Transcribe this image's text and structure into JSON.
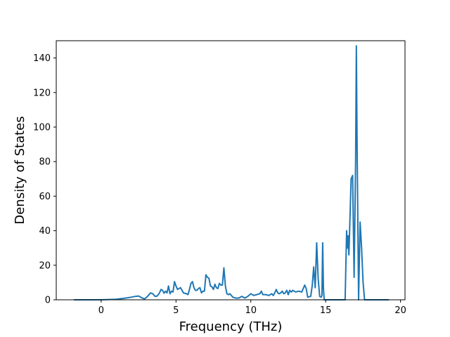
{
  "chart_data": {
    "type": "line",
    "title": "",
    "xlabel": "Frequency (THz)",
    "ylabel": "Density of States",
    "xlim": [
      -3,
      20.3
    ],
    "ylim": [
      0,
      150
    ],
    "xticks": [
      0,
      5,
      10,
      15,
      20
    ],
    "yticks": [
      0,
      20,
      40,
      60,
      80,
      100,
      120,
      140
    ],
    "grid": false,
    "legend": "none",
    "series": [
      {
        "color": "#1f77b4",
        "x": [
          -1.8,
          -1.0,
          0.0,
          1.0,
          1.5,
          2.0,
          2.3,
          2.5,
          2.7,
          2.9,
          3.1,
          3.3,
          3.45,
          3.6,
          3.75,
          3.9,
          4.0,
          4.1,
          4.2,
          4.3,
          4.4,
          4.5,
          4.6,
          4.7,
          4.8,
          4.9,
          5.0,
          5.1,
          5.3,
          5.5,
          5.7,
          5.8,
          5.9,
          6.0,
          6.1,
          6.2,
          6.3,
          6.4,
          6.5,
          6.6,
          6.7,
          6.8,
          6.9,
          7.0,
          7.1,
          7.2,
          7.3,
          7.4,
          7.5,
          7.6,
          7.7,
          7.8,
          7.9,
          8.0,
          8.1,
          8.2,
          8.3,
          8.4,
          8.5,
          8.6,
          8.8,
          9.0,
          9.2,
          9.4,
          9.6,
          9.8,
          10.0,
          10.2,
          10.4,
          10.6,
          10.7,
          10.8,
          11.0,
          11.2,
          11.4,
          11.5,
          11.6,
          11.7,
          11.8,
          11.9,
          12.0,
          12.1,
          12.2,
          12.3,
          12.4,
          12.5,
          12.6,
          12.7,
          12.8,
          12.9,
          13.0,
          13.2,
          13.4,
          13.6,
          13.7,
          13.8,
          14.0,
          14.1,
          14.2,
          14.3,
          14.4,
          14.5,
          14.6,
          14.7,
          14.75,
          14.8,
          14.85,
          14.9,
          15.0,
          15.5,
          16.0,
          16.3,
          16.4,
          16.45,
          16.5,
          16.55,
          16.6,
          16.7,
          16.8,
          16.9,
          17.0,
          17.05,
          17.1,
          17.2,
          17.3,
          17.4,
          17.5,
          17.6,
          17.7,
          18.0,
          18.5,
          19.2
        ],
        "y": [
          0,
          0,
          0,
          0.3,
          0.8,
          1.5,
          2.0,
          2.2,
          1.2,
          0.5,
          2.0,
          4.0,
          3.5,
          2.0,
          2.2,
          4.0,
          6.0,
          5.5,
          3.8,
          5.0,
          4.0,
          8.0,
          3.5,
          5.0,
          4.5,
          10.5,
          8.0,
          6.0,
          7.0,
          4.0,
          3.5,
          3.0,
          6.0,
          9.5,
          10.5,
          7.0,
          5.5,
          5.5,
          6.5,
          7.0,
          4.0,
          5.0,
          5.0,
          14.5,
          13.0,
          12.5,
          8.0,
          7.5,
          6.0,
          9.0,
          7.0,
          6.5,
          9.5,
          8.5,
          8.5,
          18.5,
          8.0,
          3.5,
          3.0,
          3.5,
          1.5,
          1.0,
          1.0,
          2.0,
          1.0,
          2.0,
          3.5,
          2.5,
          3.0,
          3.5,
          5.0,
          3.0,
          3.0,
          2.5,
          3.5,
          2.5,
          4.0,
          6.0,
          4.0,
          3.5,
          4.0,
          5.0,
          3.5,
          4.0,
          5.5,
          3.0,
          5.5,
          4.5,
          5.5,
          5.0,
          4.5,
          5.0,
          4.5,
          8.5,
          6.5,
          1.5,
          2.0,
          8.0,
          19.0,
          7.0,
          33.0,
          12.0,
          2.0,
          1.5,
          2.5,
          33.0,
          7.0,
          0,
          0,
          0,
          0,
          0,
          40.0,
          30.0,
          37.0,
          26.0,
          40.0,
          70.0,
          72.0,
          13.0,
          80.0,
          147.0,
          90.0,
          0,
          45.0,
          30.0,
          10.0,
          0,
          0,
          0,
          0,
          0
        ]
      }
    ]
  }
}
